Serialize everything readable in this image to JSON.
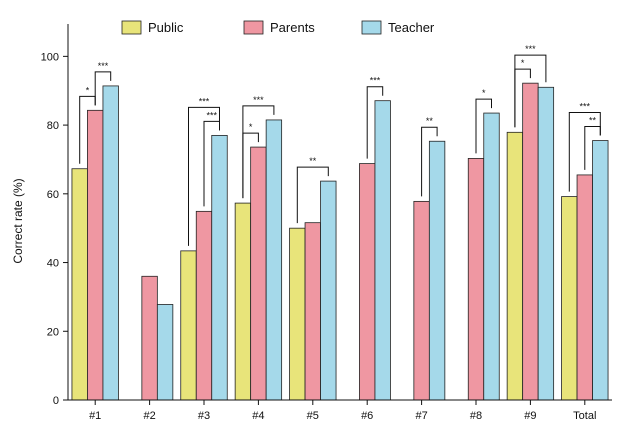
{
  "chart_data": {
    "type": "bar",
    "ylabel": "Correct rate (%)",
    "xlabel": "",
    "ylim": [
      0,
      110
    ],
    "yticks": [
      0,
      20,
      40,
      60,
      80,
      100
    ],
    "categories": [
      "#1",
      "#2",
      "#3",
      "#4",
      "#5",
      "#6",
      "#7",
      "#8",
      "#9",
      "Total"
    ],
    "series": [
      {
        "name": "Public",
        "color": "#e8e47a",
        "values": [
          67.3,
          null,
          43.4,
          57.3,
          50.0,
          null,
          null,
          null,
          77.9,
          59.2
        ]
      },
      {
        "name": "Parents",
        "color": "#ef97a2",
        "values": [
          84.3,
          36.0,
          54.9,
          73.6,
          51.6,
          68.8,
          57.8,
          70.3,
          92.2,
          65.5
        ]
      },
      {
        "name": "Teacher",
        "color": "#a5d9ea",
        "values": [
          91.4,
          27.8,
          77.0,
          81.5,
          63.7,
          87.1,
          75.3,
          83.5,
          91.0,
          75.5
        ]
      }
    ],
    "legend_position": "top",
    "grid": false,
    "significance": [
      {
        "category": "#1",
        "from": "Public",
        "to": "Parents",
        "label": "*"
      },
      {
        "category": "#1",
        "from": "Parents",
        "to": "Teacher",
        "label": "***"
      },
      {
        "category": "#3",
        "from": "Public",
        "to": "Teacher",
        "label": "***"
      },
      {
        "category": "#3",
        "from": "Parents",
        "to": "Teacher",
        "label": "***"
      },
      {
        "category": "#4",
        "from": "Public",
        "to": "Parents",
        "label": "*"
      },
      {
        "category": "#4",
        "from": "Public",
        "to": "Teacher",
        "label": "***"
      },
      {
        "category": "#5",
        "from": "Public",
        "to": "Teacher",
        "label": "**"
      },
      {
        "category": "#6",
        "from": "Parents",
        "to": "Teacher",
        "label": "***"
      },
      {
        "category": "#7",
        "from": "Parents",
        "to": "Teacher",
        "label": "**"
      },
      {
        "category": "#8",
        "from": "Parents",
        "to": "Teacher",
        "label": "*"
      },
      {
        "category": "#9",
        "from": "Public",
        "to": "Parents",
        "label": "*"
      },
      {
        "category": "#9",
        "from": "Public",
        "to": "Teacher",
        "label": "***"
      },
      {
        "category": "Total",
        "from": "Public",
        "to": "Teacher",
        "label": "***"
      },
      {
        "category": "Total",
        "from": "Parents",
        "to": "Teacher",
        "label": "**"
      }
    ]
  }
}
